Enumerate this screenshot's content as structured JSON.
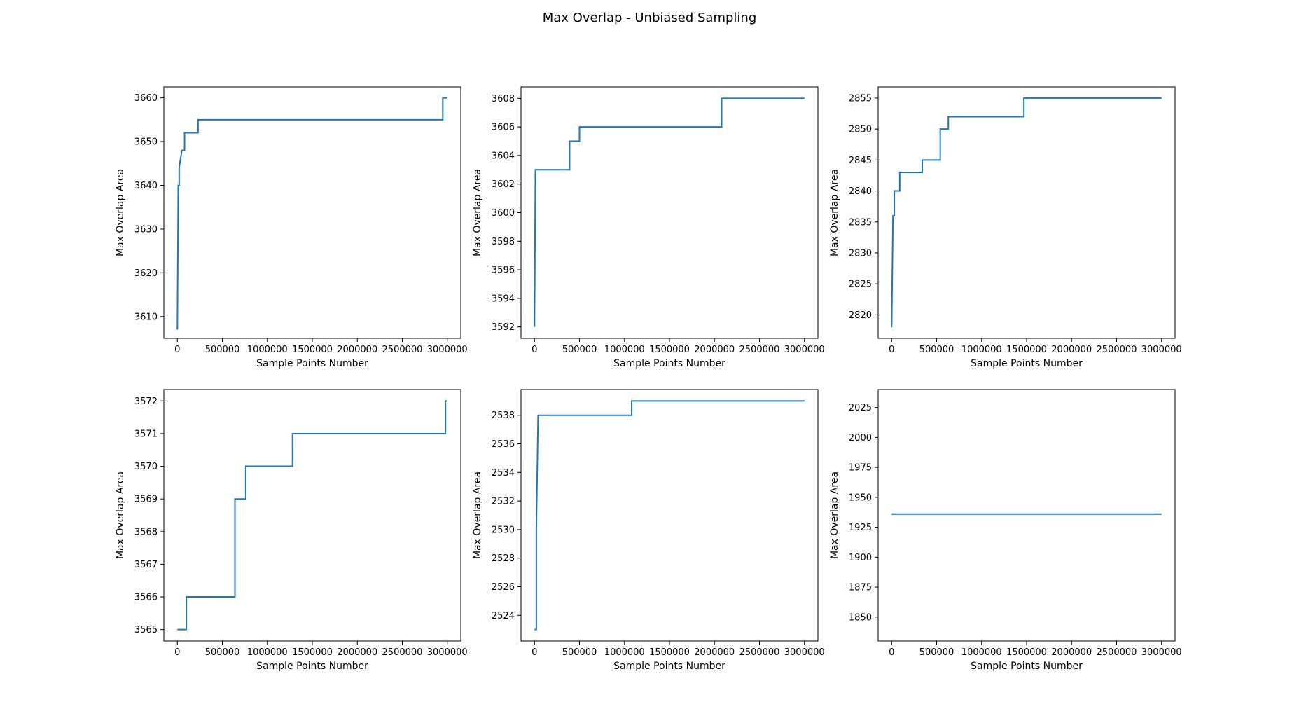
{
  "figure_title": "Max Overlap - Unbiased Sampling",
  "colors": {
    "line": "#1f77b4",
    "axes": "#000000",
    "background": "#ffffff"
  },
  "chart_data": [
    {
      "type": "line",
      "xlabel": "Sample Points Number",
      "ylabel": "Max Overlap Area",
      "xlim": [
        -150000,
        3150000
      ],
      "ylim": [
        3605,
        3662.5
      ],
      "xticks": [
        0,
        500000,
        1000000,
        1500000,
        2000000,
        2500000,
        3000000
      ],
      "xtick_labels": [
        "0",
        "500000",
        "1000000",
        "1500000",
        "2000000",
        "2500000",
        "3000000"
      ],
      "yticks": [
        3610,
        3620,
        3630,
        3640,
        3650,
        3660
      ],
      "ytick_labels": [
        "3610",
        "3620",
        "3630",
        "3640",
        "3650",
        "3660"
      ],
      "grid": false,
      "series": [
        {
          "color": "#1f77b4",
          "x": [
            0,
            10000,
            10000,
            20000,
            20000,
            50000,
            50000,
            80000,
            80000,
            230000,
            230000,
            2950000,
            2950000,
            3000000
          ],
          "y": [
            3607,
            3640,
            3640,
            3640,
            3644,
            3648,
            3648,
            3648,
            3652,
            3652,
            3655,
            3655,
            3660,
            3660
          ]
        }
      ]
    },
    {
      "type": "line",
      "xlabel": "Sample Points Number",
      "ylabel": "Max Overlap Area",
      "xlim": [
        -150000,
        3150000
      ],
      "ylim": [
        3591.2,
        3608.8
      ],
      "xticks": [
        0,
        500000,
        1000000,
        1500000,
        2000000,
        2500000,
        3000000
      ],
      "xtick_labels": [
        "0",
        "500000",
        "1000000",
        "1500000",
        "2000000",
        "2500000",
        "3000000"
      ],
      "yticks": [
        3592,
        3594,
        3596,
        3598,
        3600,
        3602,
        3604,
        3606,
        3608
      ],
      "ytick_labels": [
        "3592",
        "3594",
        "3596",
        "3598",
        "3600",
        "3602",
        "3604",
        "3606",
        "3608"
      ],
      "grid": false,
      "series": [
        {
          "color": "#1f77b4",
          "x": [
            0,
            10000,
            10000,
            390000,
            390000,
            500000,
            500000,
            2080000,
            2080000,
            3000000
          ],
          "y": [
            3592,
            3603,
            3603,
            3603,
            3605,
            3605,
            3606,
            3606,
            3608,
            3608
          ]
        }
      ]
    },
    {
      "type": "line",
      "xlabel": "Sample Points Number",
      "ylabel": "Max Overlap Area",
      "xlim": [
        -150000,
        3150000
      ],
      "ylim": [
        2816.2,
        2856.8
      ],
      "xticks": [
        0,
        500000,
        1000000,
        1500000,
        2000000,
        2500000,
        3000000
      ],
      "xtick_labels": [
        "0",
        "500000",
        "1000000",
        "1500000",
        "2000000",
        "2500000",
        "3000000"
      ],
      "yticks": [
        2820,
        2825,
        2830,
        2835,
        2840,
        2845,
        2850,
        2855
      ],
      "ytick_labels": [
        "2820",
        "2825",
        "2830",
        "2835",
        "2840",
        "2845",
        "2850",
        "2855"
      ],
      "grid": false,
      "series": [
        {
          "color": "#1f77b4",
          "x": [
            0,
            15000,
            15000,
            30000,
            30000,
            90000,
            90000,
            340000,
            340000,
            540000,
            540000,
            630000,
            630000,
            1470000,
            1470000,
            3000000
          ],
          "y": [
            2818,
            2836,
            2836,
            2836,
            2840,
            2840,
            2843,
            2843,
            2845,
            2845,
            2850,
            2850,
            2852,
            2852,
            2855,
            2855
          ]
        }
      ]
    },
    {
      "type": "line",
      "xlabel": "Sample Points Number",
      "ylabel": "Max Overlap Area",
      "xlim": [
        -150000,
        3150000
      ],
      "ylim": [
        3564.65,
        3572.35
      ],
      "xticks": [
        0,
        500000,
        1000000,
        1500000,
        2000000,
        2500000,
        3000000
      ],
      "xtick_labels": [
        "0",
        "500000",
        "1000000",
        "1500000",
        "2000000",
        "2500000",
        "3000000"
      ],
      "yticks": [
        3565,
        3566,
        3567,
        3568,
        3569,
        3570,
        3571,
        3572
      ],
      "ytick_labels": [
        "3565",
        "3566",
        "3567",
        "3568",
        "3569",
        "3570",
        "3571",
        "3572"
      ],
      "grid": false,
      "series": [
        {
          "color": "#1f77b4",
          "x": [
            0,
            100000,
            100000,
            640000,
            640000,
            760000,
            760000,
            1280000,
            1280000,
            2980000,
            2980000,
            3000000
          ],
          "y": [
            3565,
            3565,
            3566,
            3566,
            3569,
            3569,
            3570,
            3570,
            3571,
            3571,
            3572,
            3572
          ]
        }
      ]
    },
    {
      "type": "line",
      "xlabel": "Sample Points Number",
      "ylabel": "Max Overlap Area",
      "xlim": [
        -150000,
        3150000
      ],
      "ylim": [
        2522.2,
        2539.8
      ],
      "xticks": [
        0,
        500000,
        1000000,
        1500000,
        2000000,
        2500000,
        3000000
      ],
      "xtick_labels": [
        "0",
        "500000",
        "1000000",
        "1500000",
        "2000000",
        "2500000",
        "3000000"
      ],
      "yticks": [
        2524,
        2526,
        2528,
        2530,
        2532,
        2534,
        2536,
        2538
      ],
      "ytick_labels": [
        "2524",
        "2526",
        "2528",
        "2530",
        "2532",
        "2534",
        "2536",
        "2538"
      ],
      "grid": false,
      "series": [
        {
          "color": "#1f77b4",
          "x": [
            0,
            20000,
            20000,
            40000,
            40000,
            1080000,
            1080000,
            3000000
          ],
          "y": [
            2523,
            2523,
            2530,
            2538,
            2538,
            2538,
            2539,
            2539
          ]
        }
      ]
    },
    {
      "type": "line",
      "xlabel": "Sample Points Number",
      "ylabel": "Max Overlap Area",
      "xlim": [
        -150000,
        3150000
      ],
      "ylim": [
        1830,
        2040
      ],
      "xticks": [
        0,
        500000,
        1000000,
        1500000,
        2000000,
        2500000,
        3000000
      ],
      "xtick_labels": [
        "0",
        "500000",
        "1000000",
        "1500000",
        "2000000",
        "2500000",
        "3000000"
      ],
      "yticks": [
        1850,
        1875,
        1900,
        1925,
        1950,
        1975,
        2000,
        2025
      ],
      "ytick_labels": [
        "1850",
        "1875",
        "1900",
        "1925",
        "1950",
        "1975",
        "2000",
        "2025"
      ],
      "grid": false,
      "series": [
        {
          "color": "#1f77b4",
          "x": [
            0,
            3000000
          ],
          "y": [
            1936,
            1936
          ]
        }
      ]
    }
  ]
}
